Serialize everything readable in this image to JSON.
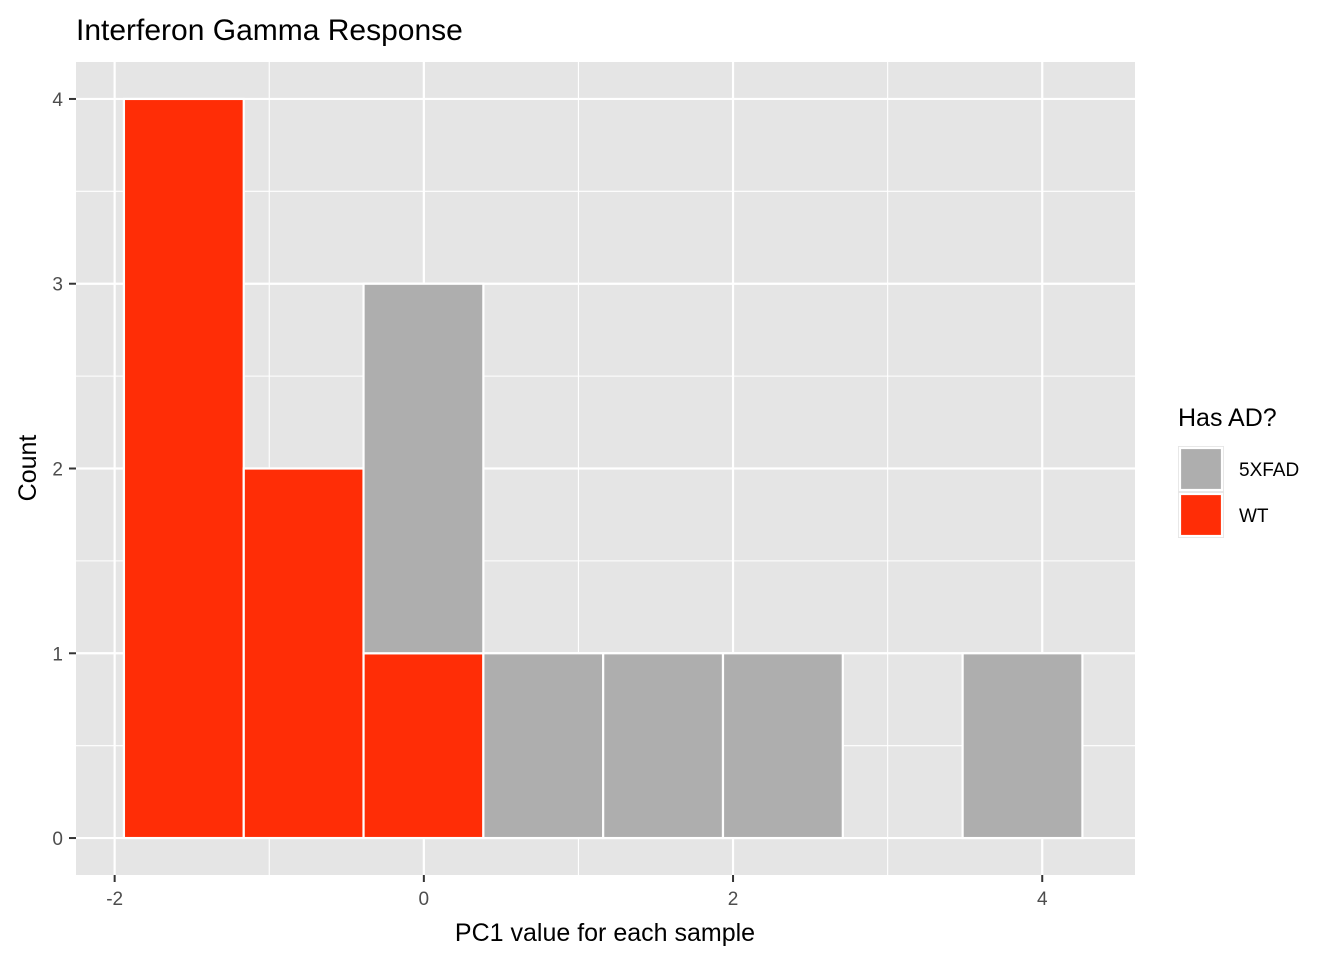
{
  "chart_data": {
    "type": "bar",
    "title": "Interferon Gamma Response",
    "xlabel": "PC1 value for each sample",
    "ylabel": "Count",
    "xlim": [
      -2.25,
      4.6
    ],
    "ylim": [
      -0.2,
      4.2
    ],
    "x_ticks": [
      -2,
      0,
      2,
      4
    ],
    "x_tick_labels": [
      "-2",
      "0",
      "2",
      "4"
    ],
    "y_ticks": [
      0,
      1,
      2,
      3,
      4
    ],
    "y_tick_labels": [
      "0",
      "1",
      "2",
      "3",
      "4"
    ],
    "grid": true,
    "stacked": true,
    "legend": {
      "title": "Has AD?",
      "position": "right",
      "entries": [
        {
          "label": "5XFAD",
          "color": "#AEAEAE"
        },
        {
          "label": "WT",
          "color": "#FF2D06"
        }
      ]
    },
    "bins": [
      {
        "x0": -1.94,
        "x1": -1.165,
        "segments": [
          {
            "group": "WT",
            "count": 4
          }
        ]
      },
      {
        "x0": -1.165,
        "x1": -0.39,
        "segments": [
          {
            "group": "WT",
            "count": 2
          }
        ]
      },
      {
        "x0": -0.39,
        "x1": 0.385,
        "segments": [
          {
            "group": "WT",
            "count": 1
          },
          {
            "group": "5XFAD",
            "count": 2
          }
        ]
      },
      {
        "x0": 0.385,
        "x1": 1.16,
        "segments": [
          {
            "group": "5XFAD",
            "count": 1
          }
        ]
      },
      {
        "x0": 1.16,
        "x1": 1.935,
        "segments": [
          {
            "group": "5XFAD",
            "count": 1
          }
        ]
      },
      {
        "x0": 1.935,
        "x1": 2.71,
        "segments": [
          {
            "group": "5XFAD",
            "count": 1
          }
        ]
      },
      {
        "x0": 3.485,
        "x1": 4.26,
        "segments": [
          {
            "group": "5XFAD",
            "count": 1
          }
        ]
      }
    ],
    "colors": {
      "panel_bg": "#E5E5E5",
      "grid": "#FFFFFF",
      "bar_outline": "#FFFFFF",
      "text": "#000000",
      "tick_text": "#4D4D4D",
      "tick_mark": "#333333"
    }
  }
}
